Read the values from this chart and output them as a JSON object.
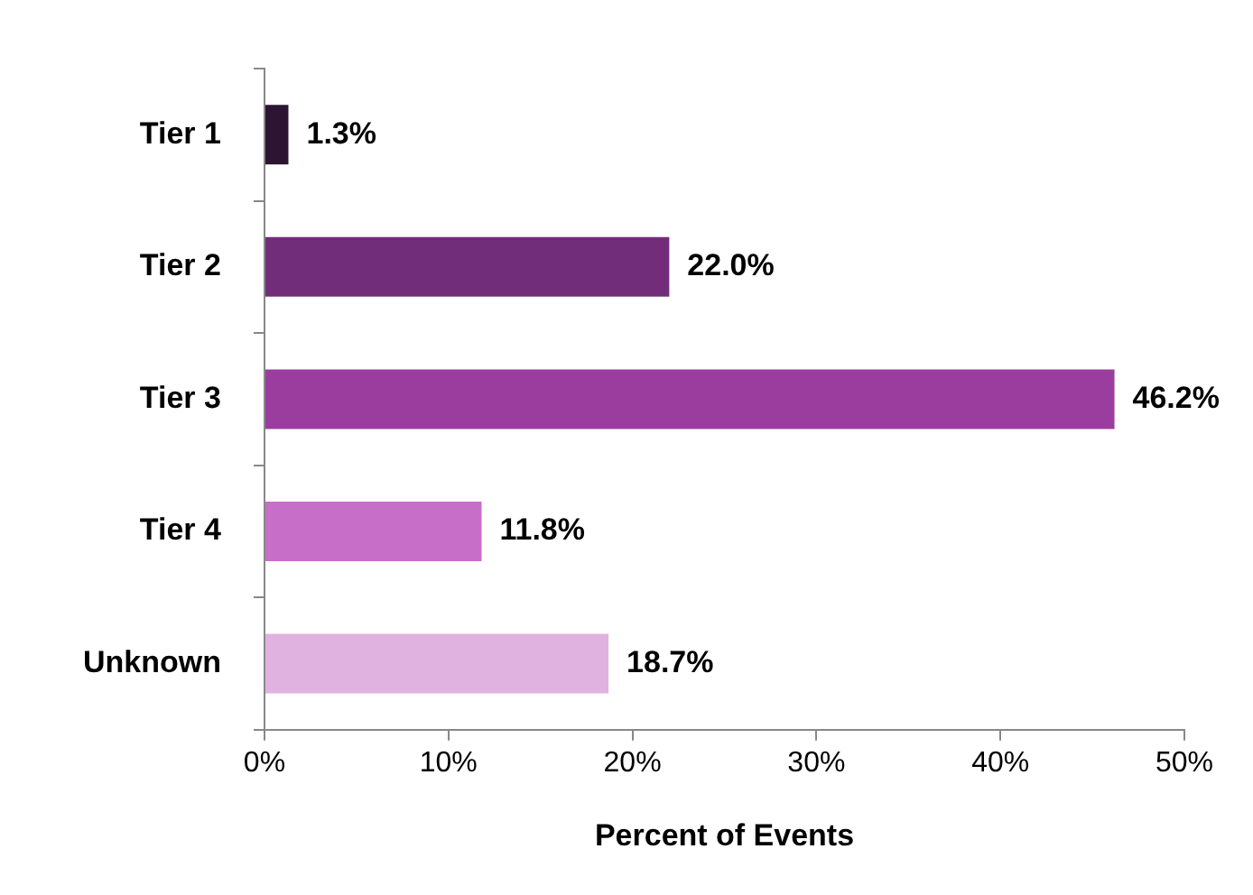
{
  "chart_data": {
    "type": "bar",
    "orientation": "horizontal",
    "xlabel": "Percent of Events",
    "categories": [
      "Tier 1",
      "Tier 2",
      "Tier 3",
      "Tier 4",
      "Unknown"
    ],
    "values": [
      1.3,
      22.0,
      46.2,
      11.8,
      18.7
    ],
    "colors": [
      "#2e1433",
      "#722d7a",
      "#9b3c9f",
      "#c76ec9",
      "#e0b2e0"
    ],
    "value_labels": [
      "1.3%",
      "22.0%",
      "46.2%",
      "11.8%",
      "18.7%"
    ],
    "xlim": [
      0,
      50
    ],
    "xticks": [
      {
        "value": 0,
        "label": "0%"
      },
      {
        "value": 10,
        "label": "10%"
      },
      {
        "value": 20,
        "label": "20%"
      },
      {
        "value": 30,
        "label": "30%"
      },
      {
        "value": 40,
        "label": "40%"
      },
      {
        "value": 50,
        "label": "50%"
      }
    ],
    "grid": false
  }
}
